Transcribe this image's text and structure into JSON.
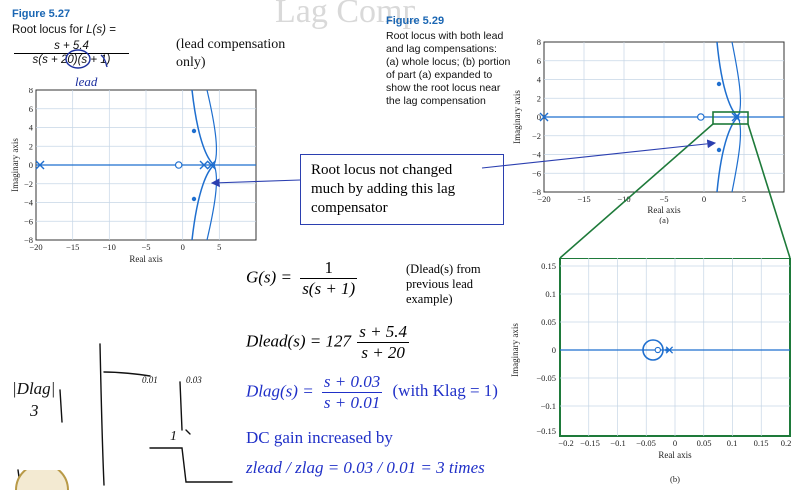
{
  "slide_title": "Lag Compensation",
  "fig527": {
    "heading": "Figure 5.27",
    "caption_prefix": "Root locus for",
    "L": "L(s) =",
    "num": "s + 5.4",
    "den": "s(s + 20)(s + 1)",
    "handwritten": "lead",
    "note_line1": "(lead compensation",
    "note_line2": "only)"
  },
  "fig529": {
    "heading": "Figure 5.29",
    "lines": [
      "Root locus with both lead",
      "and lag compensations:",
      "(a) whole locus; (b) portion",
      "of part (a) expanded to",
      "show the root locus near",
      "the lag compensation"
    ]
  },
  "callout": {
    "lines": [
      "Root locus not changed",
      "much by adding this lag",
      "compensator"
    ]
  },
  "plot_left": {
    "ylabel": "Imaginary axis",
    "xlabel": "Real axis",
    "xticks": [
      "−20",
      "−15",
      "−10",
      "−5",
      "0",
      "5"
    ],
    "yticks": [
      "8",
      "6",
      "4",
      "2",
      "0",
      "−2",
      "−4",
      "−6",
      "−8"
    ]
  },
  "plot_right_a": {
    "ylabel": "Imaginary axis",
    "xlabel": "Real axis",
    "xticks": [
      "−20",
      "−15",
      "−10",
      "−5",
      "0",
      "5"
    ],
    "yticks": [
      "8",
      "6",
      "4",
      "2",
      "0",
      "−2",
      "−4",
      "−6",
      "−8"
    ],
    "panel": "(a)"
  },
  "plot_right_b": {
    "ylabel": "Imaginary axis",
    "xlabel": "Real axis",
    "xticks": [
      "−0.2",
      "−0.15",
      "−0.1",
      "−0.05",
      "0",
      "0.05",
      "0.1",
      "0.15",
      "0.2"
    ],
    "yticks": [
      "0.15",
      "0.1",
      "0.05",
      "0",
      "−0.05",
      "−0.1",
      "−0.15"
    ],
    "panel": "(b)"
  },
  "equations": {
    "G_lhs": "G(s) =",
    "G_num": "1",
    "G_den": "s(s + 1)",
    "G_note": [
      "(Dlead(s) from",
      "previous lead",
      "example)"
    ],
    "Dlead_lhs": "Dlead(s) = 127",
    "Dlead_num": "s + 5.4",
    "Dlead_den": "s + 20",
    "Dlag_lhs": "Dlag(s) =",
    "Dlag_num": "s + 0.03",
    "Dlag_den": "s + 0.01",
    "Dlag_note": "(with Klag = 1)",
    "dc_gain": "DC gain increased by",
    "ratio": "zlead / zlag = 0.03 / 0.01 = 3 times"
  },
  "handwriting": {
    "label": "|Dlag|",
    "three": "3",
    "one": "1",
    "f1": "0.01",
    "f2": "0.03"
  },
  "colors": {
    "locus": "#1f6fcf",
    "accent": "#1a66b3",
    "text_blue": "#2030c8",
    "zoom_box": "#1e7a3a"
  }
}
